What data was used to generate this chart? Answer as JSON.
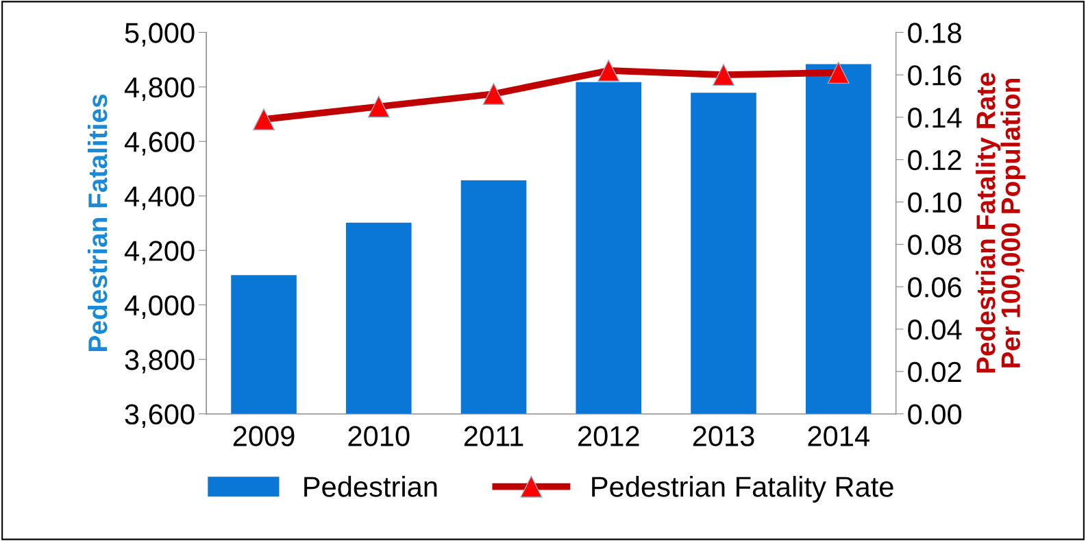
{
  "chart_data": {
    "type": "bar",
    "categories": [
      "2009",
      "2010",
      "2011",
      "2012",
      "2013",
      "2014"
    ],
    "series": [
      {
        "name": "Pedestrian",
        "color": "#0a77d6",
        "values": [
          4109,
          4302,
          4457,
          4818,
          4779,
          4884
        ]
      },
      {
        "name": "Pedestrian Fatality Rate",
        "type": "line",
        "axis": "y2",
        "color": "#c00000",
        "marker": "triangle",
        "values": [
          0.139,
          0.145,
          0.151,
          0.162,
          0.16,
          0.161
        ]
      }
    ],
    "ylabel": "Pedestrian Fatalities",
    "y2label": "Pedestrian Fatality Rate\nPer 100,000 Population",
    "ylim": [
      3600,
      5000
    ],
    "yticks": [
      {
        "value": 3600,
        "label": "3,600"
      },
      {
        "value": 3800,
        "label": "3,800"
      },
      {
        "value": 4000,
        "label": "4,000"
      },
      {
        "value": 4200,
        "label": "4,200"
      },
      {
        "value": 4400,
        "label": "4,400"
      },
      {
        "value": 4600,
        "label": "4,600"
      },
      {
        "value": 4800,
        "label": "4,800"
      },
      {
        "value": 5000,
        "label": "5,000"
      }
    ],
    "y2lim": [
      0,
      0.18
    ],
    "y2ticks": [
      {
        "value": 0,
        "label": "0.00"
      },
      {
        "value": 0.02,
        "label": "0.02"
      },
      {
        "value": 0.04,
        "label": "0.04"
      },
      {
        "value": 0.06,
        "label": "0.06"
      },
      {
        "value": 0.08,
        "label": "0.08"
      },
      {
        "value": 0.1,
        "label": "0.10"
      },
      {
        "value": 0.12,
        "label": "0.12"
      },
      {
        "value": 0.14,
        "label": "0.14"
      },
      {
        "value": 0.16,
        "label": "0.16"
      },
      {
        "value": 0.18,
        "label": "0.18"
      }
    ],
    "legend": "bottom",
    "grid": false
  }
}
